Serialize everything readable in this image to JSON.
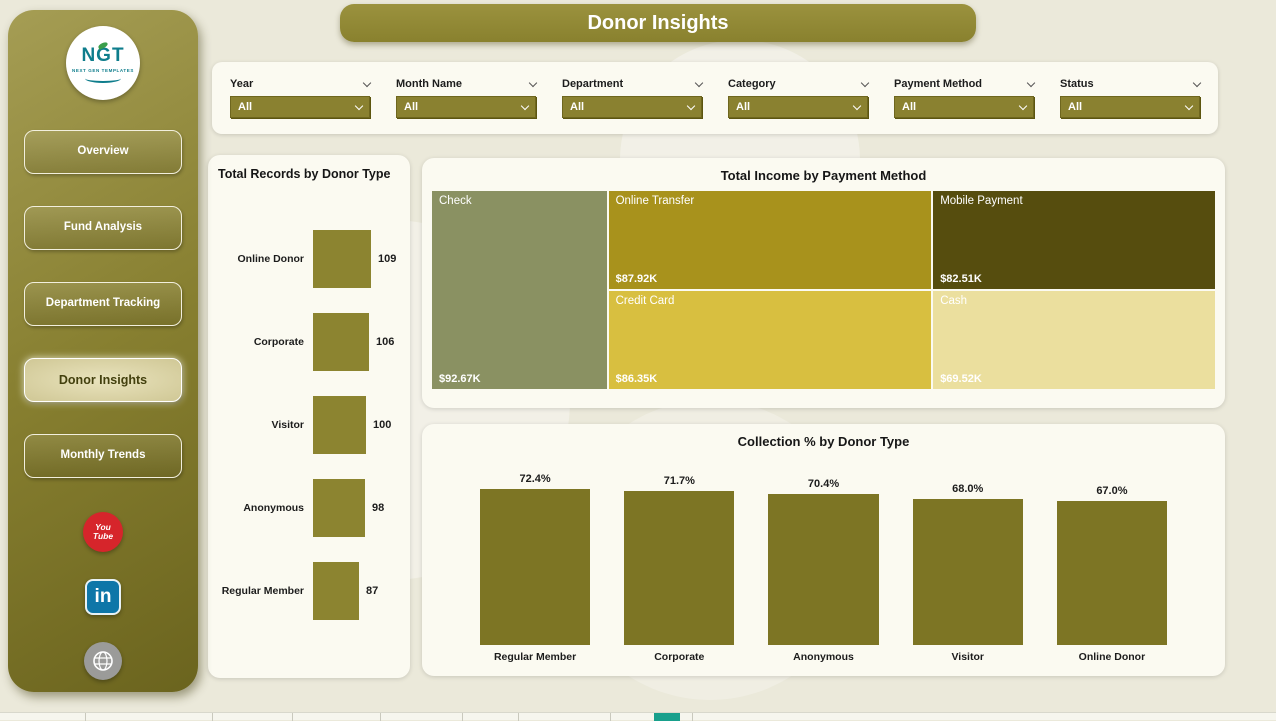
{
  "page_title": "Donor Insights",
  "sidebar": {
    "logo": {
      "text": "NGT",
      "subtext": "NEXT GEN TEMPLATES"
    },
    "items": [
      {
        "label": "Overview"
      },
      {
        "label": "Fund Analysis"
      },
      {
        "label": "Department Tracking"
      },
      {
        "label": "Donor Insights"
      },
      {
        "label": "Monthly Trends"
      }
    ],
    "active_item": "Donor Insights",
    "social": [
      {
        "name": "youtube-icon",
        "line1": "You",
        "line2": "Tube",
        "color": "#d6252b"
      },
      {
        "name": "linkedin-icon",
        "glyph": "in",
        "color": "#0e76a8"
      },
      {
        "name": "globe-icon",
        "color": "#9b9b99"
      }
    ]
  },
  "filters": {
    "items": [
      {
        "label": "Year",
        "value": "All"
      },
      {
        "label": "Month Name",
        "value": "All"
      },
      {
        "label": "Department",
        "value": "All"
      },
      {
        "label": "Category",
        "value": "All"
      },
      {
        "label": "Payment Method",
        "value": "All"
      },
      {
        "label": "Status",
        "value": "All"
      }
    ]
  },
  "chart_data": [
    {
      "type": "bar",
      "orientation": "horizontal",
      "title": "Total Records by Donor Type",
      "categories": [
        "Online Donor",
        "Corporate",
        "Visitor",
        "Anonymous",
        "Regular Member"
      ],
      "values": [
        109,
        106,
        100,
        98,
        87
      ],
      "xlim": [
        0,
        120
      ],
      "bar_color": "#8c8430",
      "grid": false,
      "legend": false
    },
    {
      "type": "treemap",
      "title": "Total Income by Payment Method",
      "items": [
        {
          "label": "Check",
          "value": 92.67,
          "value_label": "$92.67K",
          "color": "#8a9162"
        },
        {
          "label": "Online Transfer",
          "value": 87.92,
          "value_label": "$87.92K",
          "color": "#a8921c"
        },
        {
          "label": "Mobile Payment",
          "value": 82.51,
          "value_label": "$82.51K",
          "color": "#564d0e"
        },
        {
          "label": "Credit Card",
          "value": 86.35,
          "value_label": "$86.35K",
          "color": "#d8bf40"
        },
        {
          "label": "Cash",
          "value": 69.52,
          "value_label": "$69.52K",
          "color": "#ebdf9e"
        }
      ],
      "legend": false
    },
    {
      "type": "bar",
      "orientation": "vertical",
      "title": "Collection % by Donor Type",
      "categories": [
        "Regular Member",
        "Corporate",
        "Anonymous",
        "Visitor",
        "Online Donor"
      ],
      "values": [
        72.4,
        71.7,
        70.4,
        68.0,
        67.0
      ],
      "value_labels": [
        "72.4%",
        "71.7%",
        "70.4%",
        "68.0%",
        "67.0%"
      ],
      "ylim": [
        0,
        80
      ],
      "bar_color": "#7d7524",
      "grid": false,
      "legend": false
    }
  ],
  "colors": {
    "sidebar_olive": "#877f30",
    "accent_olive": "#8a8130",
    "page_background": "#ebe9da",
    "panel_background": "#fbfaf1",
    "header_text": "#ffffff",
    "active_page_indicator": "#18a08c"
  }
}
